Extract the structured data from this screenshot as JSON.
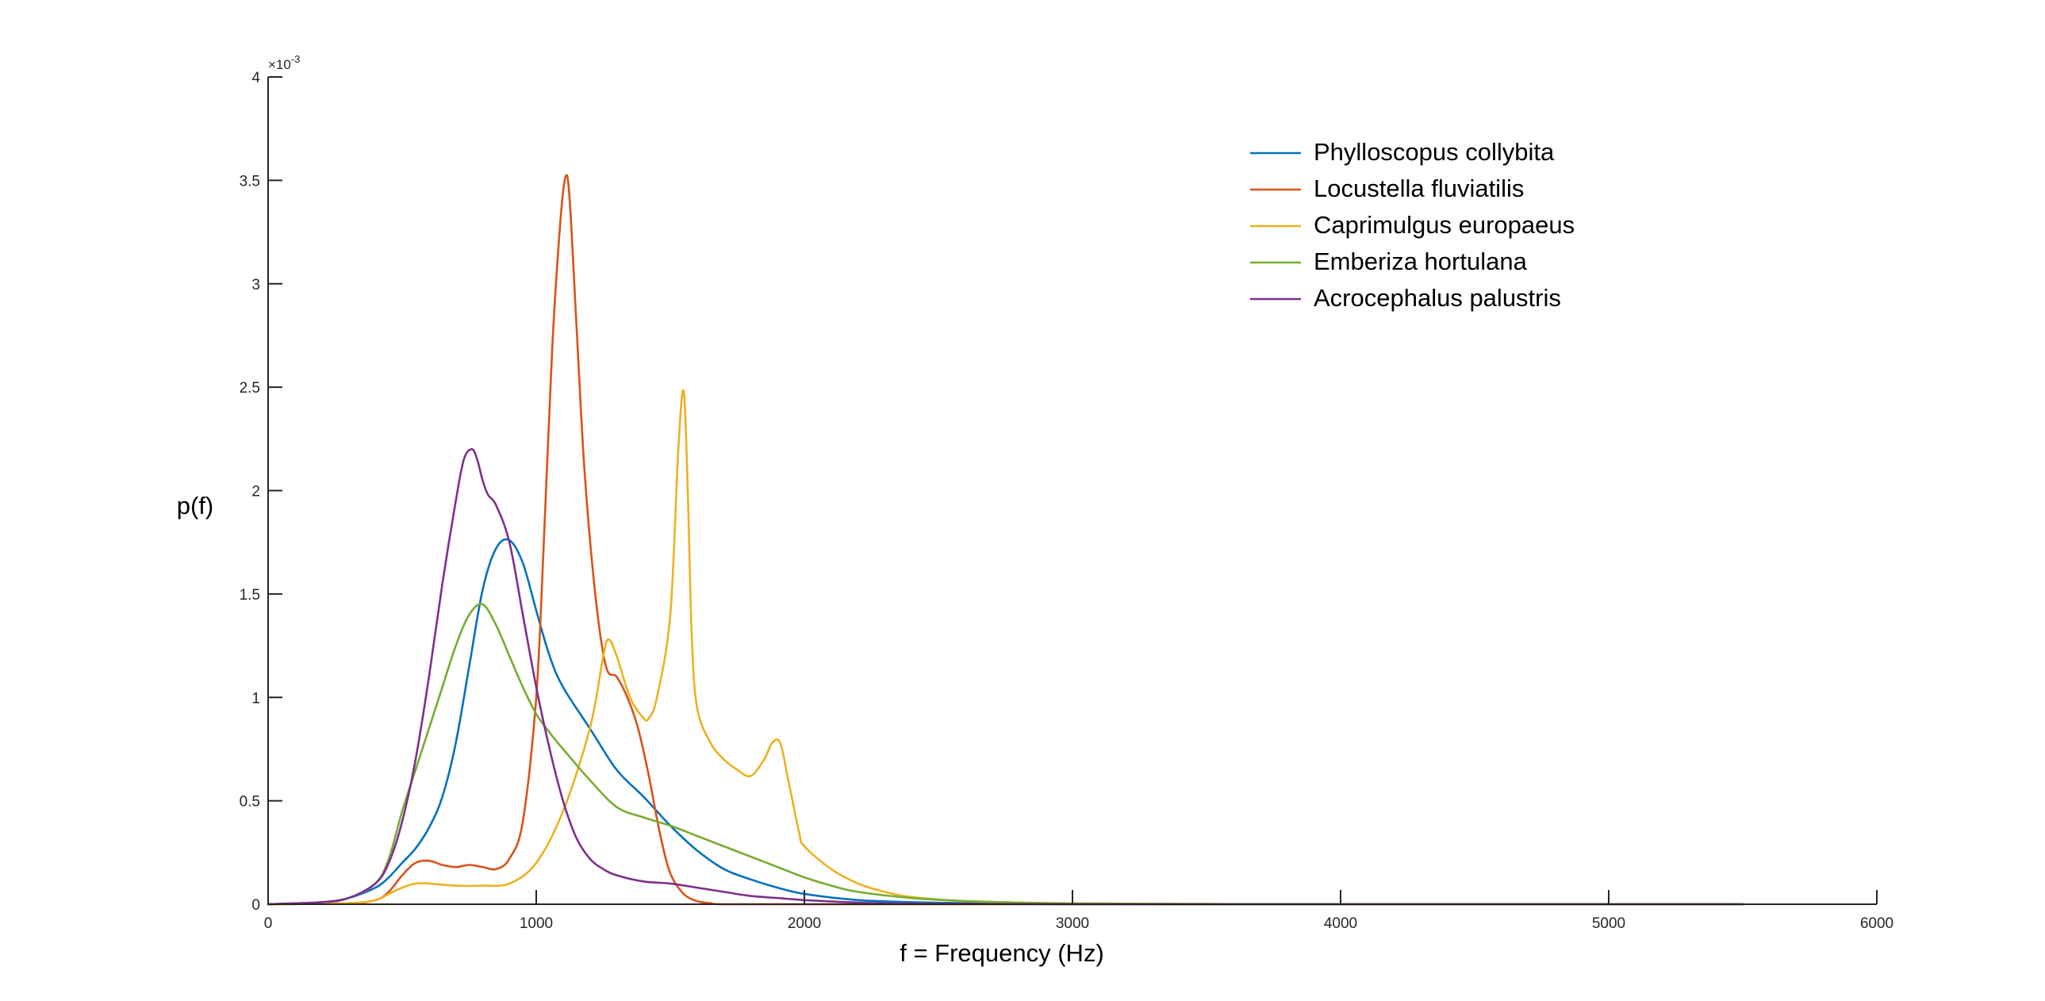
{
  "chart_data": {
    "type": "line",
    "title": "",
    "xlabel": "f = Frequency (Hz)",
    "ylabel": "p(f)",
    "y_exponent": "×10^-3",
    "y_exponent_base": "×10",
    "y_exponent_power": "-3",
    "xlim": [
      0,
      6000
    ],
    "ylim": [
      0,
      4
    ],
    "x_ticks": [
      0,
      1000,
      2000,
      3000,
      4000,
      5000,
      6000
    ],
    "x_tick_labels": [
      "0",
      "1000",
      "2000",
      "3000",
      "4000",
      "5000",
      "6000"
    ],
    "y_ticks": [
      0,
      0.5,
      1,
      1.5,
      2,
      2.5,
      3,
      3.5,
      4
    ],
    "y_tick_labels": [
      "0",
      "0.5",
      "1",
      "1.5",
      "2",
      "2.5",
      "3",
      "3.5",
      "4"
    ],
    "grid": false,
    "legend_position": "top-right",
    "series": [
      {
        "name": "Phylloscopus collybita",
        "color": "#0072BD",
        "x": [
          0,
          200,
          300,
          400,
          450,
          500,
          550,
          600,
          650,
          700,
          750,
          800,
          850,
          900,
          950,
          1000,
          1050,
          1100,
          1200,
          1300,
          1400,
          1500,
          1600,
          1700,
          1800,
          1900,
          2000,
          2200,
          2400,
          2600,
          2800,
          3000,
          3500,
          4000,
          5000,
          5500
        ],
        "values": [
          0,
          0.01,
          0.03,
          0.08,
          0.13,
          0.2,
          0.27,
          0.37,
          0.52,
          0.78,
          1.15,
          1.52,
          1.72,
          1.76,
          1.65,
          1.42,
          1.2,
          1.05,
          0.85,
          0.65,
          0.52,
          0.38,
          0.26,
          0.17,
          0.12,
          0.08,
          0.05,
          0.02,
          0.01,
          0.005,
          0.002,
          0.001,
          0,
          0,
          0,
          0
        ]
      },
      {
        "name": "Locustella fluviatilis",
        "color": "#D95319",
        "x": [
          0,
          300,
          400,
          450,
          500,
          550,
          600,
          650,
          700,
          750,
          800,
          850,
          900,
          950,
          1000,
          1030,
          1060,
          1090,
          1110,
          1125,
          1150,
          1180,
          1220,
          1260,
          1300,
          1340,
          1380,
          1420,
          1460,
          1500,
          1550,
          1600,
          1650,
          1700,
          2000,
          3000,
          5500
        ],
        "values": [
          0,
          0.005,
          0.02,
          0.06,
          0.14,
          0.2,
          0.21,
          0.19,
          0.18,
          0.19,
          0.18,
          0.17,
          0.22,
          0.4,
          1.0,
          1.8,
          2.7,
          3.3,
          3.52,
          3.4,
          2.8,
          2.1,
          1.5,
          1.15,
          1.1,
          1.0,
          0.85,
          0.62,
          0.35,
          0.15,
          0.05,
          0.015,
          0.005,
          0,
          0,
          0,
          0
        ]
      },
      {
        "name": "Caprimulgus europaeus",
        "color": "#EDB120",
        "x": [
          0,
          300,
          400,
          450,
          500,
          550,
          600,
          700,
          800,
          900,
          1000,
          1100,
          1200,
          1250,
          1270,
          1300,
          1350,
          1400,
          1420,
          1450,
          1500,
          1530,
          1550,
          1565,
          1580,
          1600,
          1650,
          1700,
          1750,
          1800,
          1850,
          1880,
          1910,
          1940,
          1980,
          2000,
          2100,
          2200,
          2300,
          2400,
          2600,
          2800,
          3000,
          3500,
          4000,
          5000,
          5500
        ],
        "values": [
          0,
          0.005,
          0.02,
          0.05,
          0.08,
          0.1,
          0.1,
          0.09,
          0.09,
          0.1,
          0.2,
          0.45,
          0.85,
          1.2,
          1.28,
          1.2,
          1.0,
          0.9,
          0.9,
          1.0,
          1.4,
          2.2,
          2.48,
          2.0,
          1.3,
          0.95,
          0.78,
          0.7,
          0.65,
          0.62,
          0.7,
          0.78,
          0.78,
          0.6,
          0.35,
          0.28,
          0.17,
          0.1,
          0.06,
          0.035,
          0.015,
          0.008,
          0.004,
          0.001,
          0,
          0,
          0
        ]
      },
      {
        "name": "Emberiza hortulana",
        "color": "#77AC30",
        "x": [
          0,
          200,
          300,
          400,
          450,
          500,
          550,
          600,
          650,
          700,
          750,
          800,
          850,
          900,
          950,
          1000,
          1050,
          1100,
          1200,
          1300,
          1400,
          1500,
          1600,
          1700,
          1800,
          1900,
          2000,
          2100,
          2200,
          2400,
          2600,
          2800,
          3000,
          3500,
          4000,
          5000,
          5500
        ],
        "values": [
          0,
          0.01,
          0.03,
          0.1,
          0.22,
          0.45,
          0.65,
          0.85,
          1.05,
          1.25,
          1.4,
          1.45,
          1.35,
          1.2,
          1.05,
          0.92,
          0.83,
          0.75,
          0.6,
          0.47,
          0.42,
          0.38,
          0.33,
          0.28,
          0.23,
          0.18,
          0.13,
          0.09,
          0.06,
          0.03,
          0.015,
          0.008,
          0.004,
          0.001,
          0,
          0,
          0
        ]
      },
      {
        "name": "Acrocephalus palustris",
        "color": "#7E2F8E",
        "x": [
          0,
          200,
          300,
          400,
          450,
          500,
          550,
          600,
          650,
          700,
          730,
          760,
          780,
          800,
          820,
          850,
          900,
          950,
          1000,
          1050,
          1100,
          1150,
          1200,
          1250,
          1300,
          1400,
          1500,
          1600,
          1700,
          1800,
          1900,
          2000,
          2200,
          2400,
          3000,
          5500
        ],
        "values": [
          0,
          0.01,
          0.03,
          0.1,
          0.2,
          0.4,
          0.7,
          1.1,
          1.55,
          1.95,
          2.15,
          2.2,
          2.15,
          2.05,
          1.98,
          1.93,
          1.75,
          1.4,
          1.05,
          0.75,
          0.5,
          0.32,
          0.22,
          0.17,
          0.14,
          0.11,
          0.1,
          0.08,
          0.06,
          0.04,
          0.03,
          0.02,
          0.008,
          0.003,
          0,
          0
        ]
      }
    ]
  }
}
